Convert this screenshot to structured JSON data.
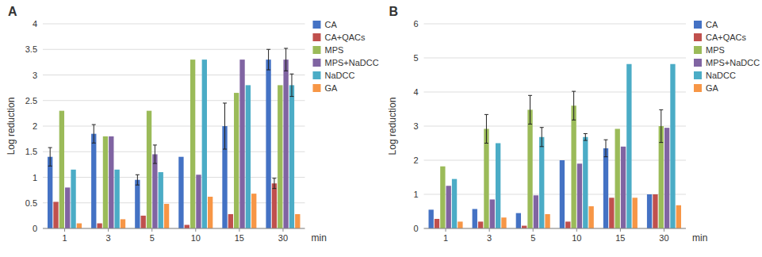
{
  "chart_data": [
    {
      "type": "bar",
      "title": "A",
      "ylabel": "Log reduction",
      "xlabel": "min",
      "categories": [
        "1",
        "3",
        "5",
        "10",
        "15",
        "30"
      ],
      "series": [
        {
          "name": "CA",
          "color": "#4472C4",
          "values": [
            1.4,
            1.85,
            0.95,
            1.4,
            2.0,
            3.3
          ],
          "errors": [
            0.18,
            0.18,
            0.1,
            0.0,
            0.45,
            0.2
          ]
        },
        {
          "name": "CA+QACs",
          "color": "#C0504D",
          "values": [
            0.52,
            0.1,
            0.25,
            0.07,
            0.28,
            0.88
          ],
          "errors": [
            0.0,
            0.0,
            0.0,
            0.0,
            0.0,
            0.1
          ]
        },
        {
          "name": "MPS",
          "color": "#9BBB59",
          "values": [
            2.3,
            1.8,
            2.3,
            3.3,
            2.65,
            2.8
          ],
          "errors": [
            0.0,
            0.0,
            0.0,
            0.0,
            0.0,
            0.0
          ]
        },
        {
          "name": "MPS+NaDCC",
          "color": "#8064A2",
          "values": [
            0.8,
            1.8,
            1.45,
            1.05,
            3.3,
            3.3
          ],
          "errors": [
            0.0,
            0.0,
            0.18,
            0.0,
            0.0,
            0.22
          ]
        },
        {
          "name": "NaDCC",
          "color": "#4BACC6",
          "values": [
            1.15,
            1.15,
            1.1,
            3.3,
            2.8,
            2.8
          ],
          "errors": [
            0.0,
            0.0,
            0.0,
            0.0,
            0.0,
            0.22
          ]
        },
        {
          "name": "GA",
          "color": "#F79646",
          "values": [
            0.1,
            0.18,
            0.48,
            0.62,
            0.68,
            0.28
          ],
          "errors": [
            0.0,
            0.0,
            0.0,
            0.0,
            0.0,
            0.0
          ]
        }
      ],
      "ylim": [
        0,
        4
      ],
      "yticks": [
        0,
        0.5,
        1,
        1.5,
        2,
        2.5,
        3,
        3.5,
        4
      ],
      "grid": true,
      "legend": "right"
    },
    {
      "type": "bar",
      "title": "B",
      "ylabel": "Log reduction",
      "xlabel": "min",
      "categories": [
        "1",
        "3",
        "5",
        "10",
        "15",
        "30"
      ],
      "series": [
        {
          "name": "CA",
          "color": "#4472C4",
          "values": [
            0.55,
            0.57,
            0.45,
            2.0,
            2.35,
            1.0
          ],
          "errors": [
            0.0,
            0.0,
            0.0,
            0.0,
            0.25,
            0.0
          ]
        },
        {
          "name": "CA+QACs",
          "color": "#C0504D",
          "values": [
            0.28,
            0.2,
            0.08,
            0.2,
            0.9,
            1.0
          ],
          "errors": [
            0.0,
            0.0,
            0.0,
            0.0,
            0.0,
            0.0
          ]
        },
        {
          "name": "MPS",
          "color": "#9BBB59",
          "values": [
            1.82,
            2.92,
            3.48,
            3.6,
            2.92,
            3.0
          ],
          "errors": [
            0.0,
            0.42,
            0.42,
            0.42,
            0.0,
            0.48
          ]
        },
        {
          "name": "MPS+NaDCC",
          "color": "#8064A2",
          "values": [
            1.25,
            0.85,
            0.97,
            1.9,
            2.4,
            2.95
          ],
          "errors": [
            0.0,
            0.0,
            0.0,
            0.0,
            0.0,
            0.0
          ]
        },
        {
          "name": "NaDCC",
          "color": "#4BACC6",
          "values": [
            1.45,
            2.5,
            2.68,
            2.68,
            4.82,
            4.82
          ],
          "errors": [
            0.0,
            0.0,
            0.28,
            0.1,
            0.0,
            0.0
          ]
        },
        {
          "name": "GA",
          "color": "#F79646",
          "values": [
            0.2,
            0.32,
            0.42,
            0.65,
            0.9,
            0.68
          ],
          "errors": [
            0.0,
            0.0,
            0.0,
            0.0,
            0.0,
            0.0
          ]
        }
      ],
      "ylim": [
        0,
        6
      ],
      "yticks": [
        0,
        1,
        2,
        3,
        4,
        5,
        6
      ],
      "grid": true,
      "legend": "right"
    }
  ]
}
